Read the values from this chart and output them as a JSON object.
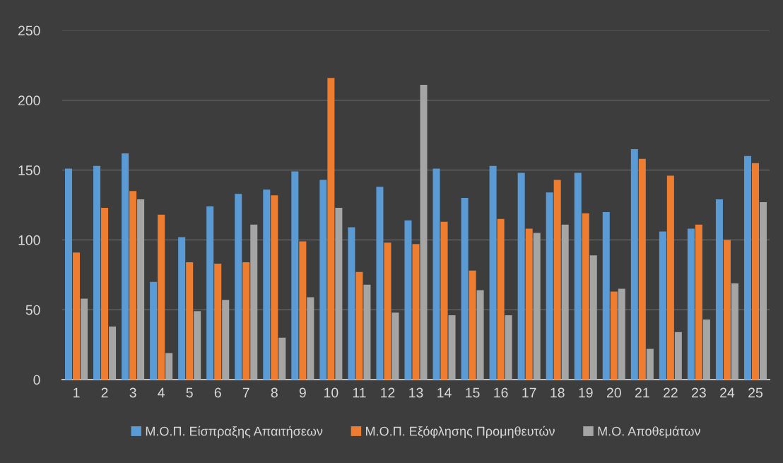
{
  "chart_data": {
    "type": "bar",
    "categories": [
      "1",
      "2",
      "3",
      "4",
      "5",
      "6",
      "7",
      "8",
      "9",
      "10",
      "11",
      "12",
      "13",
      "14",
      "15",
      "16",
      "17",
      "18",
      "19",
      "20",
      "21",
      "22",
      "23",
      "24",
      "25"
    ],
    "series": [
      {
        "name": "Μ.Ο.Π. Είσπραξης Απαιτήσεων",
        "color": "#5b9bd5",
        "values": [
          151,
          153,
          162,
          70,
          102,
          124,
          133,
          136,
          149,
          143,
          109,
          138,
          114,
          151,
          130,
          153,
          148,
          134,
          148,
          120,
          165,
          106,
          108,
          129,
          160
        ]
      },
      {
        "name": "Μ.Ο.Π. Εξόφλησης Προμηθευτών",
        "color": "#ed7d31",
        "values": [
          91,
          123,
          135,
          118,
          84,
          83,
          84,
          132,
          99,
          216,
          77,
          98,
          97,
          113,
          78,
          115,
          108,
          143,
          119,
          63,
          158,
          146,
          111,
          100,
          155
        ]
      },
      {
        "name": "Μ.Ο. Αποθεμάτων",
        "color": "#a5a5a5",
        "values": [
          58,
          38,
          129,
          19,
          49,
          57,
          111,
          30,
          59,
          123,
          68,
          48,
          211,
          46,
          64,
          46,
          105,
          111,
          89,
          65,
          22,
          34,
          43,
          69,
          127
        ]
      }
    ],
    "ylim": [
      0,
      250
    ],
    "yticks": [
      0,
      50,
      100,
      150,
      200,
      250
    ],
    "grid": "y",
    "legend": "bottom"
  }
}
